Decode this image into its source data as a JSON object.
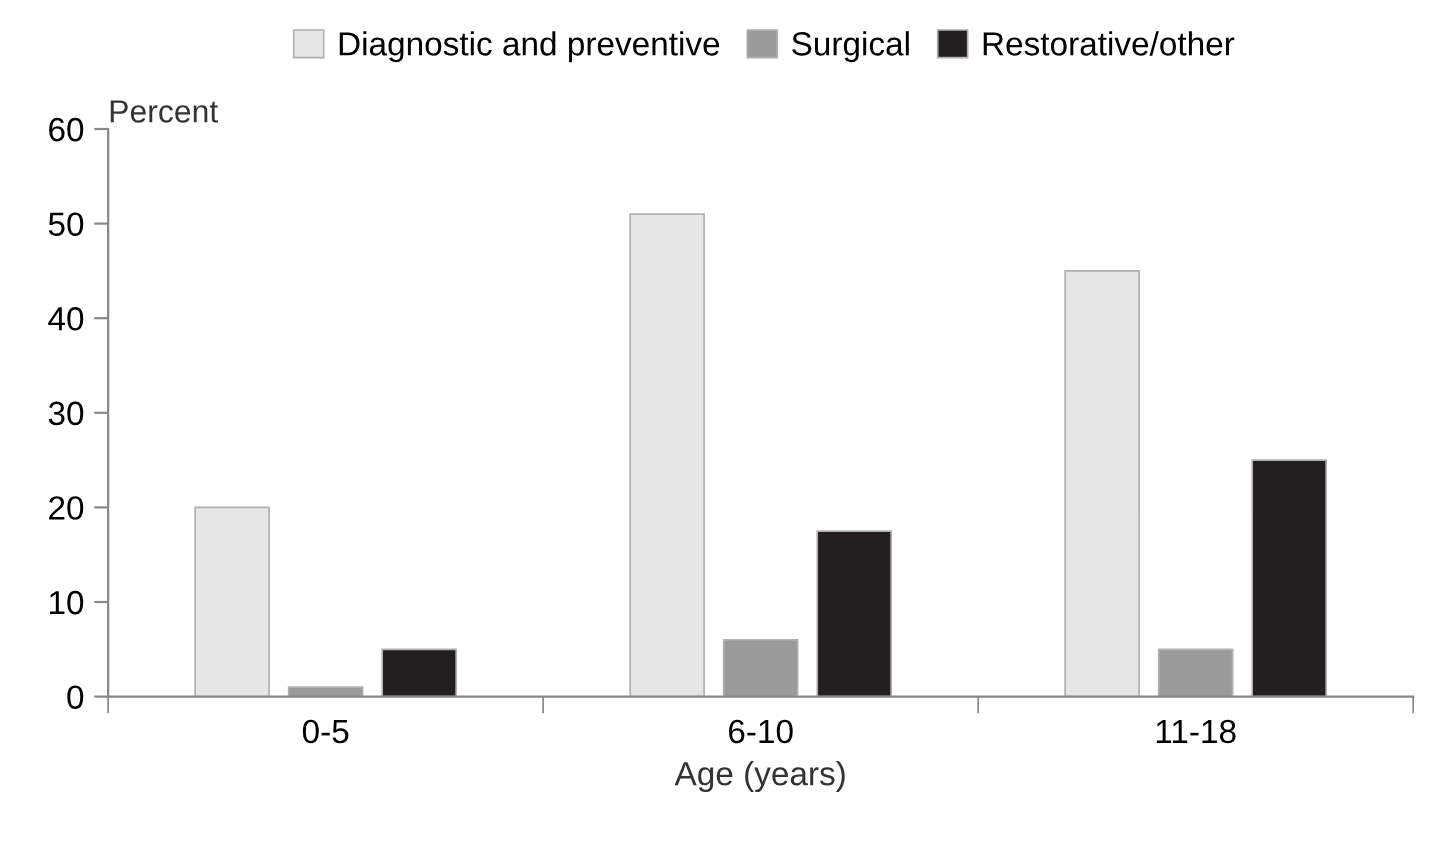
{
  "chart_data": {
    "type": "bar",
    "xlabel": "Age (years)",
    "ylabel": "Percent",
    "categories": [
      "0-5",
      "6-10",
      "11-18"
    ],
    "series": [
      {
        "name": "Diagnostic and preventive",
        "color": "#e6e6e6",
        "values": [
          20,
          51,
          45
        ]
      },
      {
        "name": "Surgical",
        "color": "#9a9a9a",
        "values": [
          1,
          6,
          5
        ]
      },
      {
        "name": "Restorative/other",
        "color": "#231f20",
        "values": [
          5,
          17.5,
          25
        ]
      }
    ],
    "ylim": [
      0,
      60
    ],
    "yticks": [
      0,
      10,
      20,
      30,
      40,
      50,
      60
    ],
    "grid": false,
    "legend": "top"
  }
}
